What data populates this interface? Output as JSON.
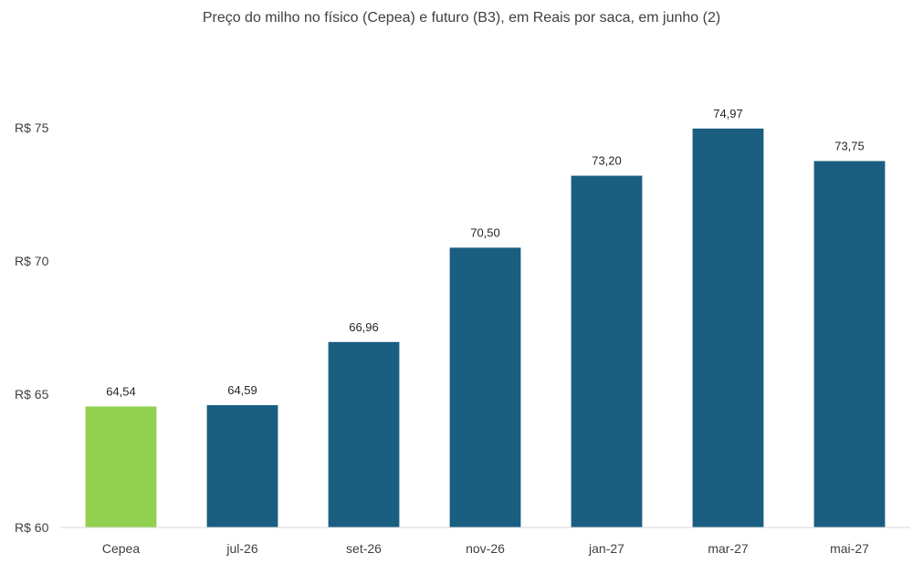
{
  "chart_data": {
    "type": "bar",
    "title": "Preço do milho no físico (Cepea) e futuro (B3), em Reais por saca, em junho (2)",
    "categories": [
      "Cepea",
      "jul-26",
      "set-26",
      "nov-26",
      "jan-27",
      "mar-27",
      "mai-27"
    ],
    "values": [
      64.54,
      64.59,
      66.96,
      70.5,
      73.2,
      74.97,
      73.75
    ],
    "data_labels": [
      "64,54",
      "64,59",
      "66,96",
      "70,50",
      "73,20",
      "74,97",
      "73,75"
    ],
    "colors": [
      "#92d050",
      "#1a5e82",
      "#1a5e82",
      "#1a5e82",
      "#1a5e82",
      "#1a5e82",
      "#1a5e82"
    ],
    "ylim": [
      60,
      75
    ],
    "yticks": [
      60,
      65,
      70,
      75
    ],
    "ytick_labels": [
      "R$ 60",
      "R$ 65",
      "R$ 70",
      "R$ 75"
    ],
    "grid": false,
    "xlabel": "",
    "ylabel": ""
  }
}
